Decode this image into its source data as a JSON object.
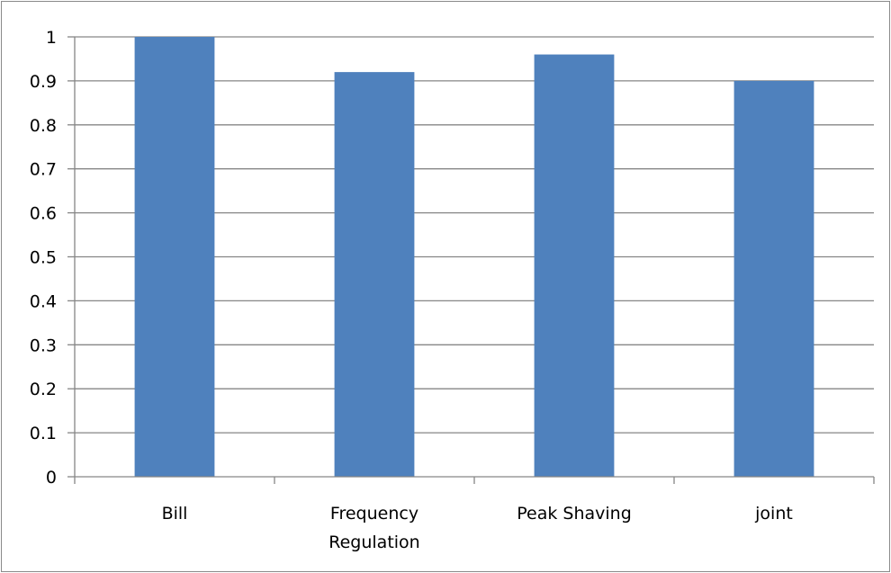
{
  "chart_data": {
    "type": "bar",
    "categories": [
      "Bill",
      "Frequency Regulation",
      "Peak Shaving",
      "joint"
    ],
    "category_label_lines": [
      [
        "Bill"
      ],
      [
        "Frequency",
        "Regulation"
      ],
      [
        "Peak Shaving"
      ],
      [
        "joint"
      ]
    ],
    "values": [
      1.0,
      0.92,
      0.96,
      0.9
    ],
    "ylim": [
      0,
      1
    ],
    "yticks": [
      0,
      0.1,
      0.2,
      0.3,
      0.4,
      0.5,
      0.6,
      0.7,
      0.8,
      0.9,
      1
    ],
    "ytick_labels": [
      "0",
      "0.1",
      "0.2",
      "0.3",
      "0.4",
      "0.5",
      "0.6",
      "0.7",
      "0.8",
      "0.9",
      "1"
    ],
    "grid": true,
    "legend": "none",
    "bar_color": "#4f81bd",
    "grid_color": "#868686",
    "title": "",
    "xlabel": "",
    "ylabel": ""
  }
}
